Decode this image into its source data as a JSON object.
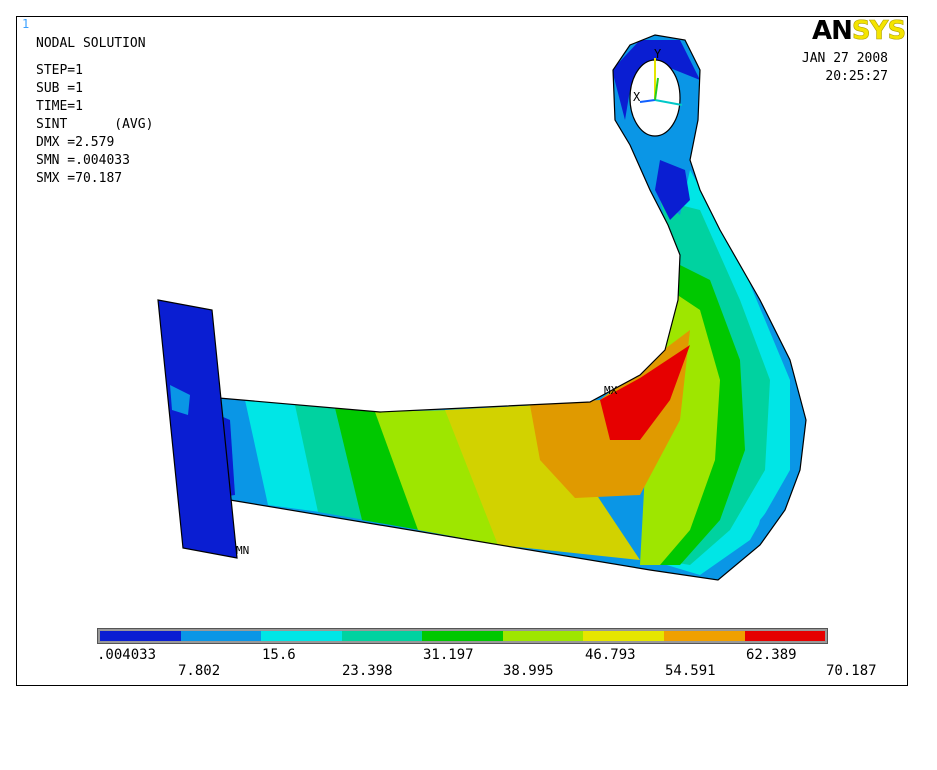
{
  "window_number": "1",
  "logo": {
    "part1": "AN",
    "part2": "SYS"
  },
  "info": {
    "title": "NODAL SOLUTION",
    "step": "STEP=1",
    "sub": "SUB =1",
    "time": "TIME=1",
    "result": "SINT      (AVG)",
    "dmx": "DMX =2.579",
    "smn": "SMN =.004033",
    "smx": "SMX =70.187"
  },
  "date": "JAN 27 2008",
  "time": "20:25:27",
  "markers": {
    "mx": "MX",
    "mn": "MN"
  },
  "triad": {
    "y": "Y",
    "x": "X"
  },
  "legend": {
    "colors": [
      "#0a1ed2",
      "#0a96e6",
      "#00e6e6",
      "#00d2a0",
      "#00c800",
      "#9ee600",
      "#e6e600",
      "#f0a000",
      "#e60000"
    ],
    "labels_top": [
      ".004033",
      "15.6",
      "31.197",
      "46.793",
      "62.389"
    ],
    "labels_bottom": [
      "7.802",
      "23.398",
      "38.995",
      "54.591",
      "70.187"
    ]
  }
}
